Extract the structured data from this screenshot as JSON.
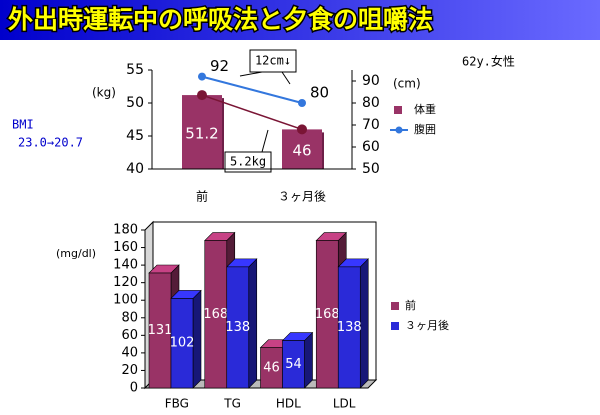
{
  "slide": {
    "title": "外出時運転中の呼吸法と夕食の咀嚼法",
    "subject": "62y.女性",
    "bmi_label": "BMI",
    "bmi_value": "23.0→20.7"
  },
  "chart_data": [
    {
      "type": "bar",
      "categories": [
        "前",
        "３ヶ月後"
      ],
      "ylabel": "(kg)",
      "y2label": "(cm)",
      "ylim": [
        40,
        55
      ],
      "yticks": [
        40,
        45,
        50,
        55
      ],
      "y2lim": [
        50,
        95
      ],
      "y2ticks": [
        50,
        60,
        70,
        80,
        90
      ],
      "series": [
        {
          "name": "体重",
          "color": "#993366",
          "line_color": "#7a1535",
          "values": [
            51.2,
            46
          ]
        },
        {
          "name": "腹囲",
          "type": "line",
          "axis": "y2",
          "color": "#3377dd",
          "values": [
            92,
            80
          ]
        }
      ],
      "annotations": [
        "12cm↓",
        "5.2kg"
      ],
      "legend": "right"
    },
    {
      "type": "bar",
      "three_d": true,
      "categories": [
        "FBG",
        "TG",
        "HDL",
        "LDL"
      ],
      "ylabel": "(mg/dl)",
      "ylim": [
        0,
        180
      ],
      "yticks": [
        0,
        20,
        40,
        60,
        80,
        100,
        120,
        140,
        160,
        180
      ],
      "series": [
        {
          "name": "前",
          "color": "#993366",
          "values": [
            131,
            168,
            46,
            168
          ]
        },
        {
          "name": "３ヶ月後",
          "color": "#2a2ad8",
          "values": [
            102,
            138,
            54,
            138
          ]
        }
      ],
      "legend": "right"
    }
  ]
}
